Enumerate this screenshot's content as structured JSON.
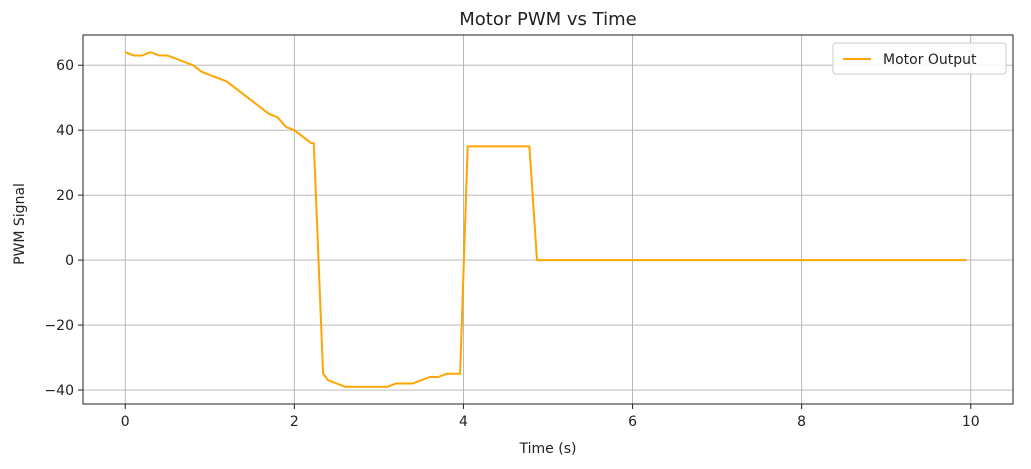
{
  "chart_data": {
    "type": "line",
    "title": "Motor PWM vs Time",
    "xlabel": "Time (s)",
    "ylabel": "PWM Signal",
    "xlim": [
      -0.5,
      10.5
    ],
    "ylim": [
      -44.3,
      69.3
    ],
    "x_ticks": [
      0,
      2,
      4,
      6,
      8,
      10
    ],
    "x_tick_labels": [
      "0",
      "2",
      "4",
      "6",
      "8",
      "10"
    ],
    "y_ticks": [
      -40,
      -20,
      0,
      20,
      40,
      60
    ],
    "y_tick_labels": [
      "−40",
      "−20",
      "0",
      "20",
      "40",
      "60"
    ],
    "grid": true,
    "legend": {
      "position": "top-right",
      "entries": [
        "Motor Output"
      ]
    },
    "series": [
      {
        "name": "Motor Output",
        "color": "#ffa500",
        "x": [
          0,
          0.1,
          0.2,
          0.3,
          0.4,
          0.5,
          0.6,
          0.7,
          0.8,
          0.9,
          1.0,
          1.1,
          1.2,
          1.3,
          1.4,
          1.5,
          1.6,
          1.7,
          1.8,
          1.9,
          2.0,
          2.1,
          2.2,
          2.23,
          2.34,
          2.4,
          2.5,
          2.6,
          2.7,
          2.8,
          2.9,
          3.0,
          3.1,
          3.2,
          3.3,
          3.4,
          3.5,
          3.6,
          3.7,
          3.8,
          3.9,
          3.96,
          4.05,
          4.2,
          4.4,
          4.6,
          4.78,
          4.87,
          5.0,
          6.0,
          7.0,
          8.0,
          9.0,
          9.95
        ],
        "y": [
          64,
          63,
          63,
          64,
          63,
          63,
          62,
          61,
          60,
          58,
          57,
          56,
          55,
          53,
          51,
          49,
          47,
          45,
          44,
          41,
          40,
          38,
          36,
          36,
          -35,
          -37,
          -38,
          -39,
          -39,
          -39,
          -39,
          -39,
          -39,
          -38,
          -38,
          -38,
          -37,
          -36,
          -36,
          -35,
          -35,
          -35,
          35,
          35,
          35,
          35,
          35,
          0,
          0,
          0,
          0,
          0,
          0,
          0
        ]
      }
    ]
  }
}
